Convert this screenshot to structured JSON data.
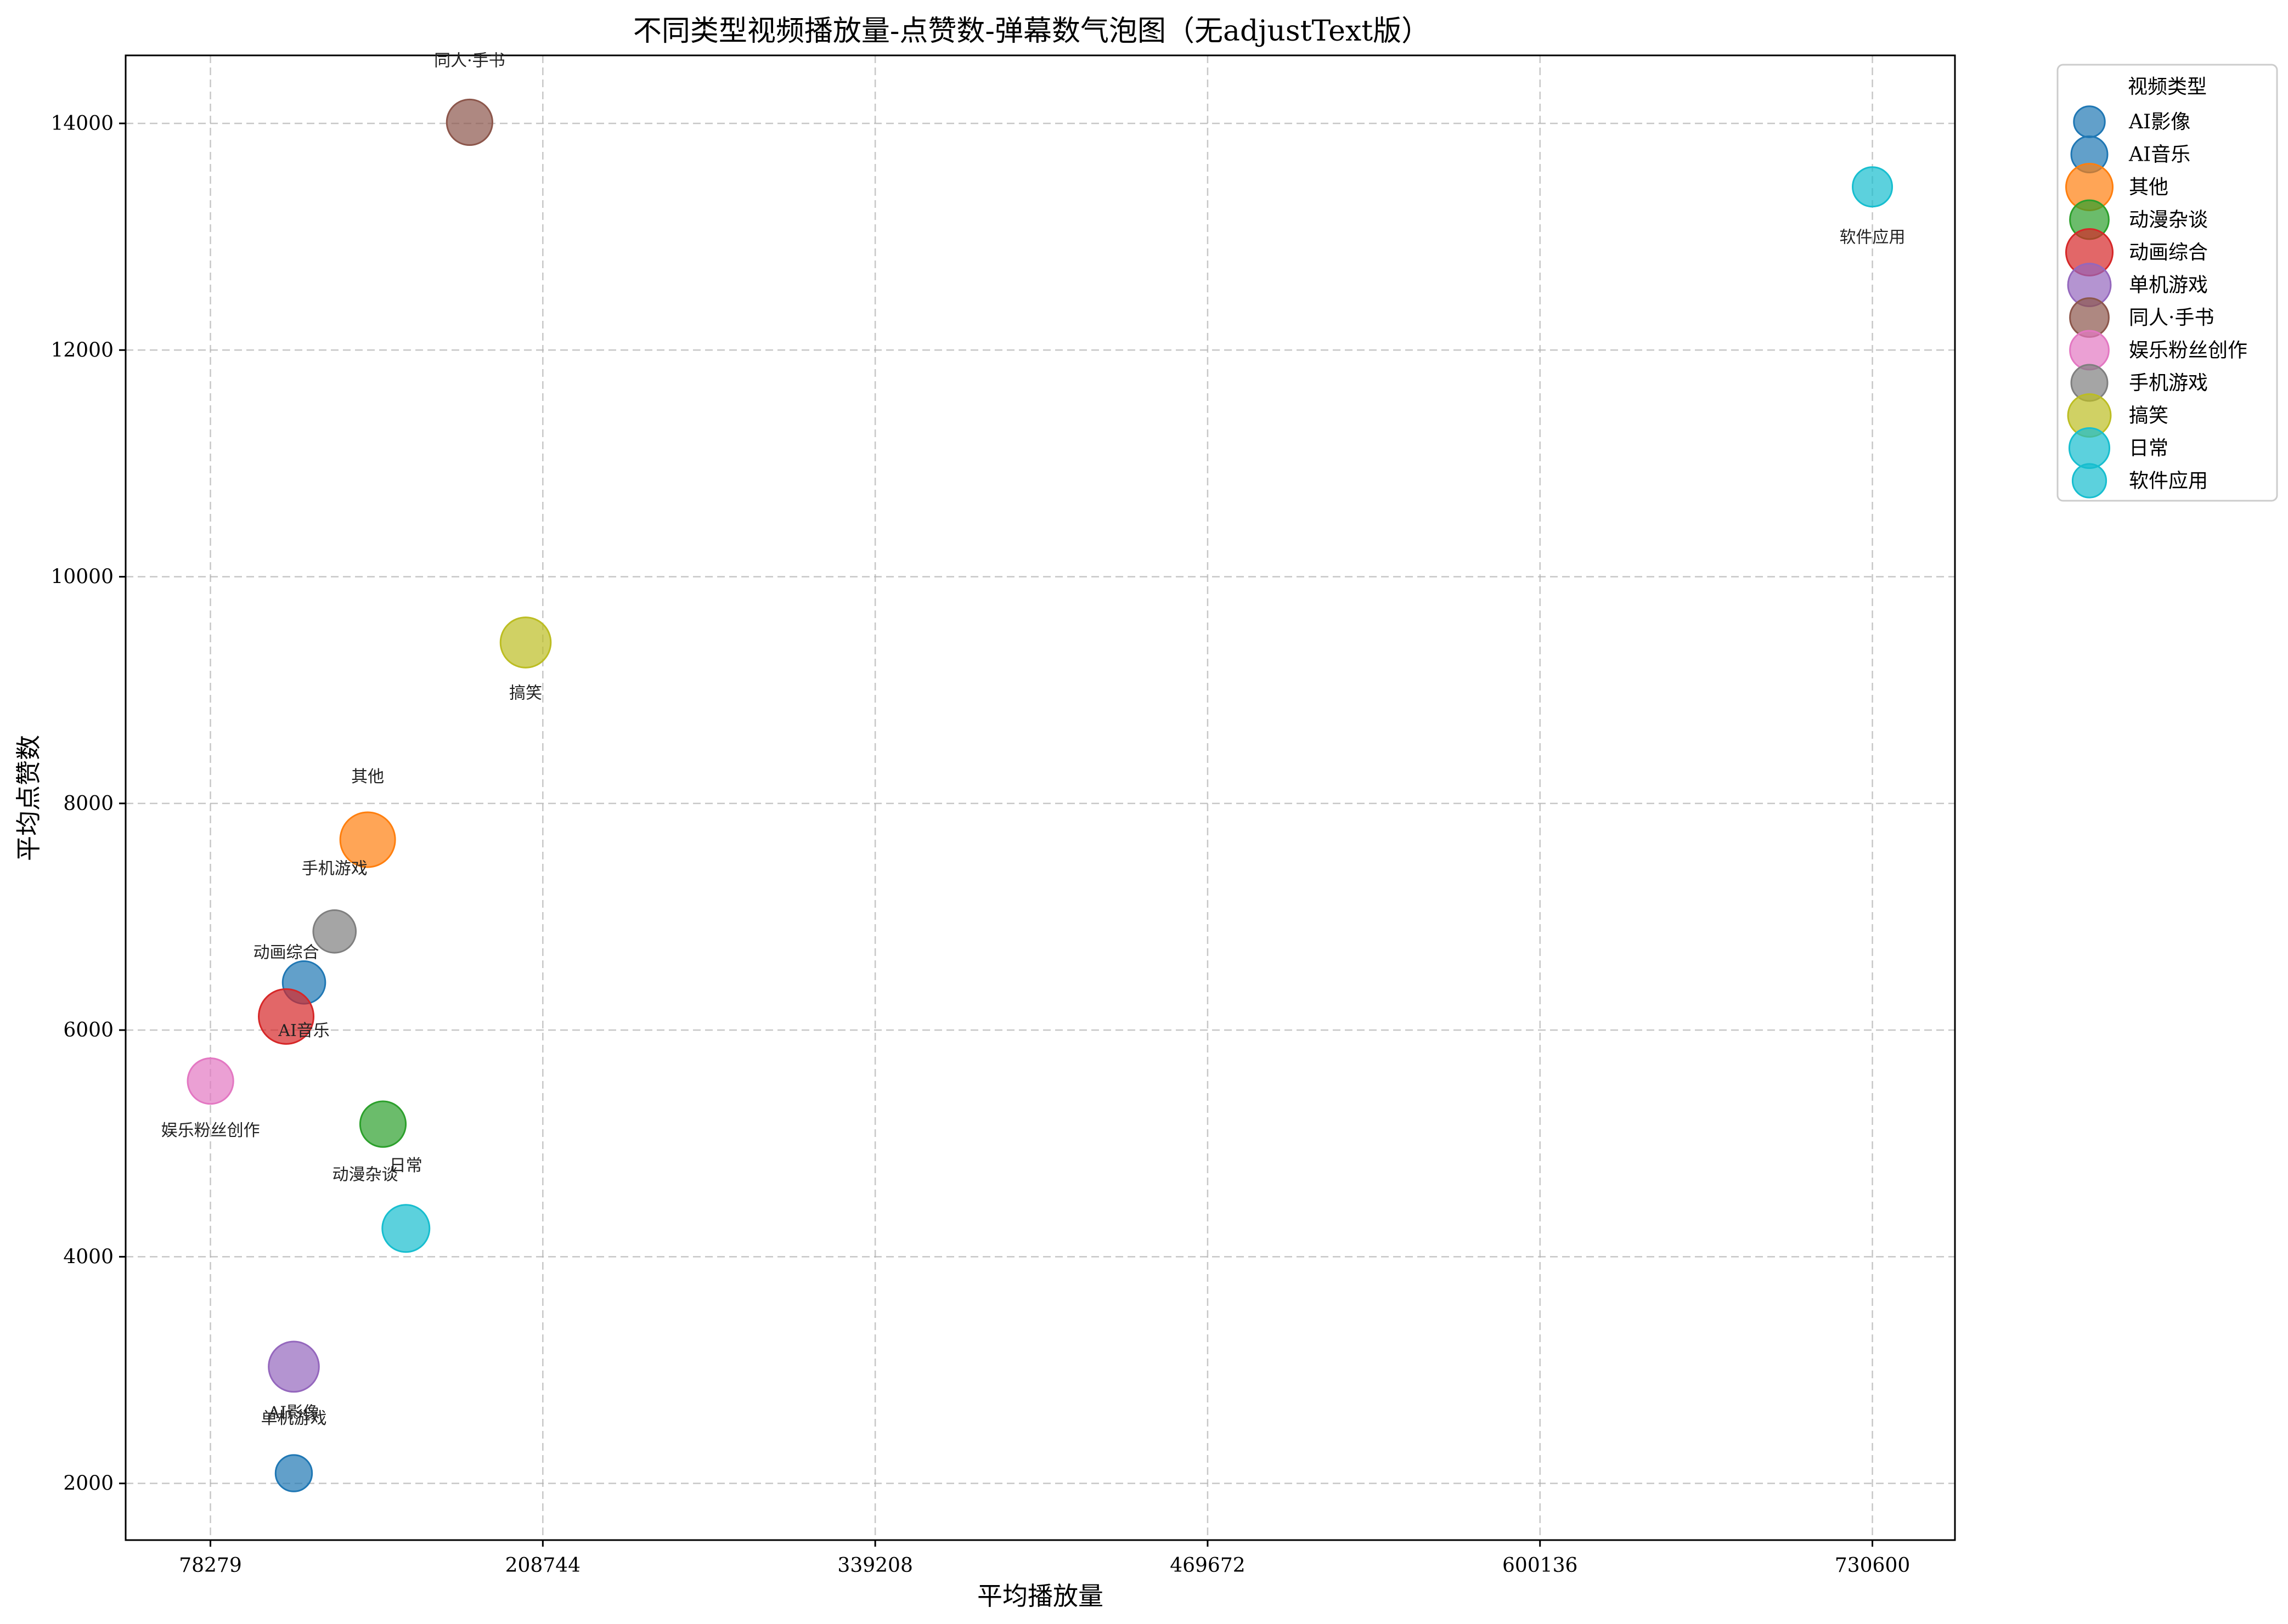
{
  "chart_data": {
    "type": "scatter",
    "title": "不同类型视频播放量-点赞数-弹幕数气泡图（无adjustText版）",
    "xlabel": "平均播放量",
    "ylabel": "平均点赞数",
    "xlim": [
      45000,
      763000
    ],
    "ylim": [
      1500,
      14600
    ],
    "xticks": [
      78279,
      208744,
      339208,
      469672,
      600136,
      730600
    ],
    "yticks": [
      2000,
      4000,
      6000,
      8000,
      10000,
      12000,
      14000
    ],
    "grid": true,
    "legend": {
      "title": "视频类型",
      "placement": "outside-top-right"
    },
    "colors": {
      "blue": "#1f77b4",
      "orange": "#ff7f0e",
      "green": "#2ca02c",
      "red": "#d62728",
      "purple": "#9467bd",
      "brown": "#8c564b",
      "pink": "#e377c2",
      "gray": "#7f7f7f",
      "olive": "#bcbd22",
      "cyan": "#17becf"
    },
    "series": [
      {
        "name": "AI影像",
        "x": 111000,
        "y": 2090,
        "size": 0.4,
        "color": "#1f77b4",
        "label_x": 111000,
        "label_y": 2630
      },
      {
        "name": "AI音乐",
        "x": 115000,
        "y": 6420,
        "size": 0.6,
        "color": "#1f77b4",
        "label_x": 115000,
        "label_y": 6000
      },
      {
        "name": "其他",
        "x": 140000,
        "y": 7680,
        "size": 1.0,
        "color": "#ff7f0e",
        "label_x": 140000,
        "label_y": 8240
      },
      {
        "name": "动漫杂谈",
        "x": 146000,
        "y": 5170,
        "size": 0.7,
        "color": "#2ca02c",
        "label_x": 139000,
        "label_y": 4730
      },
      {
        "name": "动画综合",
        "x": 108000,
        "y": 6120,
        "size": 1.0,
        "color": "#d62728",
        "label_x": 108000,
        "label_y": 6690
      },
      {
        "name": "单机游戏",
        "x": 111000,
        "y": 3030,
        "size": 0.85,
        "color": "#9467bd",
        "label_x": 111000,
        "label_y": 2580
      },
      {
        "name": "同人·手书",
        "x": 180000,
        "y": 14010,
        "size": 0.7,
        "color": "#8c564b",
        "label_x": 180000,
        "label_y": 14560
      },
      {
        "name": "娱乐粉丝创作",
        "x": 78300,
        "y": 5550,
        "size": 0.7,
        "color": "#e377c2",
        "label_x": 78300,
        "label_y": 5120
      },
      {
        "name": "手机游戏",
        "x": 127000,
        "y": 6870,
        "size": 0.6,
        "color": "#7f7f7f",
        "label_x": 127000,
        "label_y": 7430
      },
      {
        "name": "搞笑",
        "x": 202000,
        "y": 9420,
        "size": 0.85,
        "color": "#bcbd22",
        "label_x": 202000,
        "label_y": 8980
      },
      {
        "name": "日常",
        "x": 155000,
        "y": 4250,
        "size": 0.75,
        "color": "#17becf",
        "label_x": 155000,
        "label_y": 4810
      },
      {
        "name": "软件应用",
        "x": 730600,
        "y": 13440,
        "size": 0.5,
        "color": "#17becf",
        "label_x": 730600,
        "label_y": 13000
      }
    ]
  }
}
